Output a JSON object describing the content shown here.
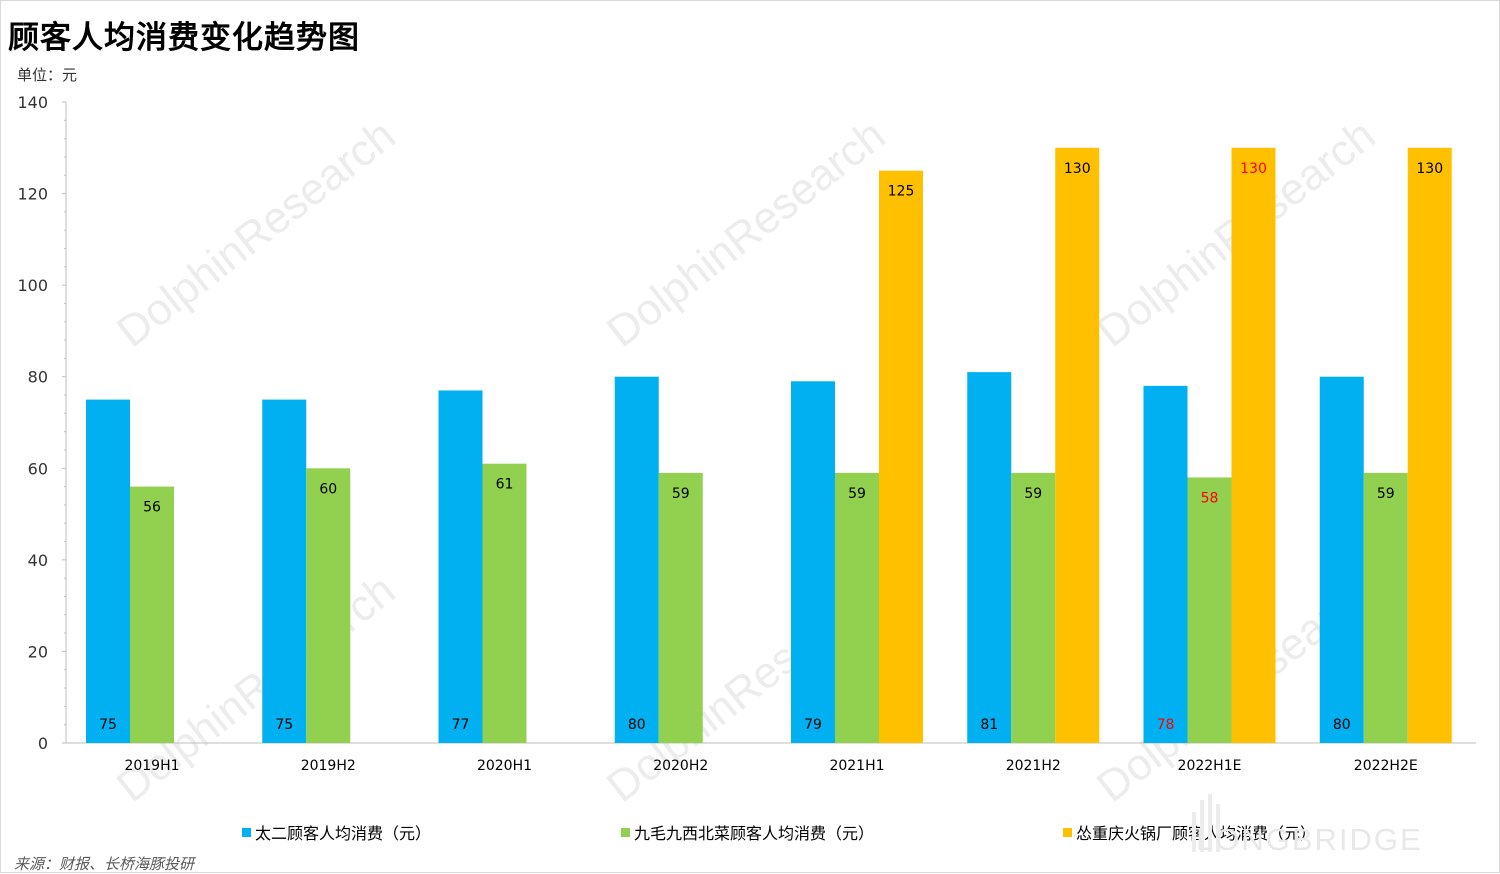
{
  "title": "顾客人均消费变化趋势图",
  "unit_label": "单位：元",
  "source": "来源：财报、长桥海豚投研",
  "watermark": {
    "brand": "LONGBRIDGE",
    "research": "DolphinResearch",
    "small": "LONGBRIDGE"
  },
  "chart_data": {
    "type": "bar",
    "categories": [
      "2019H1",
      "2019H2",
      "2020H1",
      "2020H2",
      "2021H1",
      "2021H2",
      "2022H1E",
      "2022H2E"
    ],
    "ylim": [
      0,
      140
    ],
    "yticks": [
      0,
      20,
      40,
      60,
      80,
      100,
      120,
      140
    ],
    "series": [
      {
        "name": "太二顾客人均消费（元）",
        "color": "#00b0f0",
        "values": [
          75,
          75,
          77,
          80,
          79,
          81,
          78,
          80
        ]
      },
      {
        "name": "九毛九西北菜顾客人均消费（元）",
        "color": "#92d050",
        "values": [
          56,
          60,
          61,
          59,
          59,
          59,
          58,
          59
        ]
      },
      {
        "name": "怂重庆火锅厂顾客人均消费（元）",
        "color": "#ffc000",
        "values": [
          null,
          null,
          null,
          null,
          125,
          130,
          130,
          130
        ]
      }
    ],
    "label_colors": {
      "normal": "#000000",
      "estimate": "#ff0000"
    },
    "estimate_category": "2022H1E",
    "grid": false,
    "legend_position": "bottom"
  }
}
